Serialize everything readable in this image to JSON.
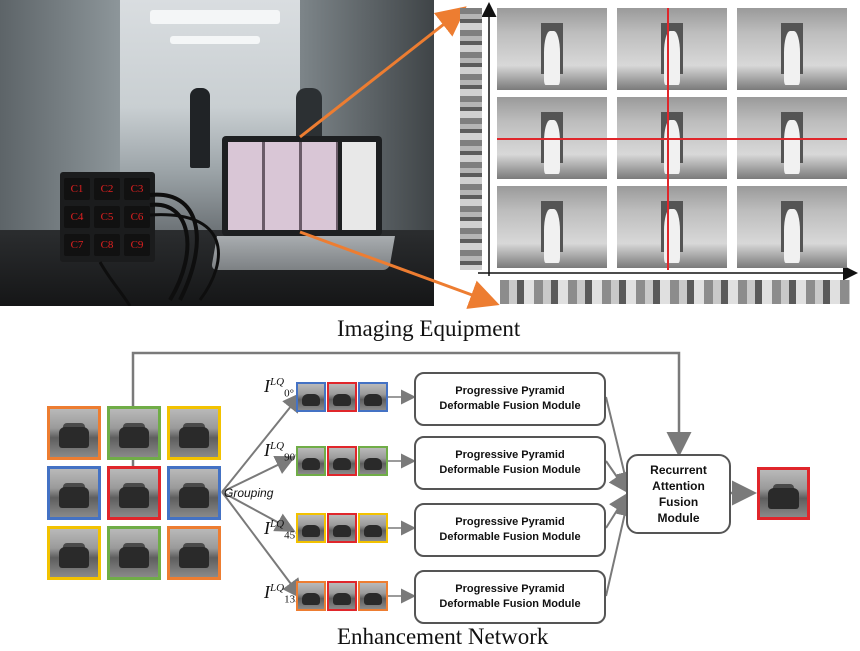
{
  "captions": {
    "top": "Imaging Equipment",
    "bottom": "Enhancement Network"
  },
  "cameras": [
    "C1",
    "C2",
    "C3",
    "C4",
    "C5",
    "C6",
    "C7",
    "C8",
    "C9"
  ],
  "grouping_label": "Grouping",
  "branches": [
    {
      "label_main": "I",
      "label_sup": "LQ",
      "label_sub": "0°",
      "colors": [
        "#4472c4",
        "#e0262b",
        "#4472c4"
      ]
    },
    {
      "label_main": "I",
      "label_sup": "LQ",
      "label_sub": "90°",
      "colors": [
        "#70ad47",
        "#e0262b",
        "#70ad47"
      ]
    },
    {
      "label_main": "I",
      "label_sup": "LQ",
      "label_sub": "45°",
      "colors": [
        "#f2c200",
        "#e0262b",
        "#f2c200"
      ]
    },
    {
      "label_main": "I",
      "label_sup": "LQ",
      "label_sub": "135°",
      "colors": [
        "#ed7d31",
        "#e0262b",
        "#ed7d31"
      ]
    }
  ],
  "fusion_module": {
    "line1": "Progressive Pyramid",
    "line2": "Deformable Fusion  Module"
  },
  "recurrent_module": {
    "line1": "Recurrent",
    "line2": "Attention",
    "line3": "Fusion",
    "line4": "Module"
  },
  "grid_colors": [
    "#ed7d31",
    "#70ad47",
    "#f2c200",
    "#4472c4",
    "#e0262b",
    "#4472c4",
    "#f2c200",
    "#70ad47",
    "#ed7d31"
  ],
  "colors": {
    "arrow": "#7a7a7a",
    "orange": "#ed7d31",
    "red": "#e0262b"
  }
}
